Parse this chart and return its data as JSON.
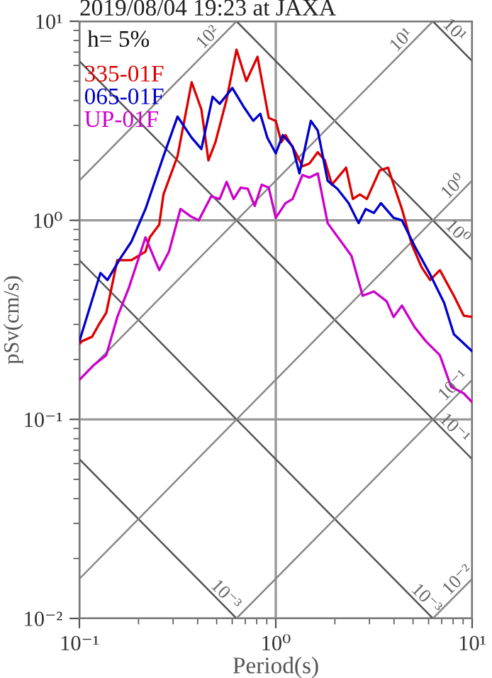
{
  "chart_data": {
    "type": "line",
    "title": "2019/08/04 19:23 at JAXA",
    "xlabel": "Period(s)",
    "ylabel": "pSv(cm/s)",
    "log": "xy",
    "xlim": [
      0.1,
      10
    ],
    "ylim": [
      0.01,
      10
    ],
    "xticks": [
      {
        "value": 0.1,
        "label": "10⁻¹"
      },
      {
        "value": 1,
        "label": "10⁰"
      },
      {
        "value": 10,
        "label": "10¹"
      }
    ],
    "yticks": [
      {
        "value": 0.01,
        "label": "10⁻²"
      },
      {
        "value": 0.1,
        "label": "10⁻¹"
      },
      {
        "value": 1,
        "label": "10⁰"
      },
      {
        "value": 10,
        "label": "10¹"
      }
    ],
    "grid": true,
    "legend": "top left",
    "series": [
      {
        "name": "335-01F",
        "color": "#dd0000",
        "x": [
          0.1,
          0.103,
          0.116,
          0.126,
          0.137,
          0.156,
          0.184,
          0.217,
          0.228,
          0.255,
          0.268,
          0.316,
          0.373,
          0.418,
          0.454,
          0.493,
          0.562,
          0.631,
          0.708,
          0.807,
          0.921,
          1.0,
          1.068,
          1.122,
          1.259,
          1.367,
          1.484,
          1.637,
          1.778,
          1.931,
          2.28,
          2.47,
          2.68,
          2.91,
          3.38,
          3.73,
          4.05,
          4.39,
          4.93,
          5.53,
          6.11,
          6.85,
          8.07,
          9.06,
          10
        ],
        "values": [
          0.239,
          0.247,
          0.26,
          0.301,
          0.343,
          0.631,
          0.631,
          0.696,
          0.821,
          0.952,
          1.35,
          2.1,
          4.94,
          3.61,
          2.0,
          2.47,
          4.05,
          7.2,
          5.01,
          6.63,
          3.27,
          3.16,
          2.47,
          2.68,
          2.2,
          1.87,
          1.93,
          2.2,
          2.0,
          1.51,
          1.84,
          1.28,
          1.35,
          1.28,
          1.78,
          1.84,
          1.44,
          1.14,
          0.756,
          0.581,
          0.501,
          0.562,
          0.418,
          0.332,
          0.327
        ]
      },
      {
        "name": "065-01F",
        "color": "#0000cc",
        "x": [
          0.1,
          0.128,
          0.139,
          0.161,
          0.184,
          0.217,
          0.268,
          0.316,
          0.373,
          0.418,
          0.477,
          0.518,
          0.601,
          0.685,
          0.768,
          0.834,
          0.906,
          1.0,
          1.085,
          1.218,
          1.32,
          1.509,
          1.637,
          1.837,
          2.06,
          2.35,
          2.64,
          2.87,
          3.16,
          3.43,
          3.98,
          4.39,
          5.09,
          6.11,
          7.2,
          8.07,
          10
        ],
        "values": [
          0.247,
          0.544,
          0.501,
          0.641,
          0.781,
          1.14,
          2.1,
          3.32,
          2.6,
          2.28,
          4.18,
          3.85,
          4.62,
          3.73,
          3.16,
          3.43,
          2.6,
          2.17,
          2.68,
          2.35,
          1.72,
          3.16,
          2.82,
          1.58,
          1.44,
          1.22,
          0.968,
          1.14,
          1.09,
          1.22,
          1.03,
          1.0,
          0.744,
          0.535,
          0.385,
          0.268,
          0.22
        ]
      },
      {
        "name": "UP-01F",
        "color": "#cc00cc",
        "x": [
          0.1,
          0.118,
          0.137,
          0.156,
          0.178,
          0.217,
          0.255,
          0.286,
          0.327,
          0.367,
          0.405,
          0.469,
          0.518,
          0.562,
          0.61,
          0.663,
          0.72,
          0.781,
          0.848,
          0.921,
          1.0,
          1.122,
          1.218,
          1.367,
          1.484,
          1.637,
          1.837,
          2.43,
          2.77,
          3.16,
          3.67,
          3.98,
          4.39,
          5.09,
          5.81,
          6.85,
          7.81,
          9.06,
          10
        ],
        "values": [
          0.158,
          0.187,
          0.21,
          0.327,
          0.454,
          0.821,
          0.562,
          0.696,
          1.14,
          1.05,
          1.0,
          1.32,
          1.28,
          1.56,
          1.28,
          1.46,
          1.44,
          1.18,
          1.51,
          1.46,
          1.03,
          1.22,
          1.28,
          1.69,
          1.64,
          1.72,
          0.968,
          0.663,
          0.418,
          0.439,
          0.392,
          0.327,
          0.373,
          0.291,
          0.247,
          0.21,
          0.146,
          0.135,
          0.122
        ]
      },
      {
        "color": "#555555",
        "x": [
          6.31,
          10
        ],
        "values": [
          10,
          6.31
        ]
      },
      {
        "color": "#555555",
        "x": [
          0.631,
          10
        ],
        "values": [
          10,
          0.631
        ]
      },
      {
        "color": "#555555",
        "x": [
          0.1,
          10
        ],
        "values": [
          6.31,
          0.0631
        ]
      },
      {
        "color": "#555555",
        "x": [
          0.1,
          6.31
        ],
        "values": [
          0.631,
          0.01
        ]
      },
      {
        "color": "#555555",
        "x": [
          0.1,
          0.631
        ],
        "values": [
          0.0631,
          0.01
        ]
      },
      {
        "color": "#888888",
        "x": [
          0.1,
          0.631
        ],
        "values": [
          1.585,
          10
        ]
      },
      {
        "color": "#888888",
        "x": [
          0.1,
          6.31
        ],
        "values": [
          0.158,
          10
        ]
      },
      {
        "color": "#888888",
        "x": [
          0.1,
          10
        ],
        "values": [
          0.0158,
          1.585
        ]
      },
      {
        "color": "#888888",
        "x": [
          0.631,
          10
        ],
        "values": [
          0.01,
          0.158
        ]
      },
      {
        "color": "#888888",
        "x": [
          6.31,
          10
        ],
        "values": [
          0.01,
          0.0158
        ]
      }
    ],
    "annotations": [
      "h= 5%",
      {
        "text": "10²",
        "x": 0.454,
        "y": 7.2
      },
      {
        "text": "10¹",
        "x": 4.39,
        "y": 6.97
      },
      {
        "text": "10¹",
        "x": 8.07,
        "y": 7.82
      },
      {
        "text": "10⁰",
        "x": 8.07,
        "y": 1.28
      },
      {
        "text": "10⁰",
        "x": 8.35,
        "y": 0.757
      },
      {
        "text": "10⁻¹",
        "x": 8.07,
        "y": 0.128
      },
      {
        "text": "10⁻¹",
        "x": 8.07,
        "y": 0.0782
      },
      {
        "text": "10⁻³",
        "x": 0.553,
        "y": 0.0114
      },
      {
        "text": "10⁻³",
        "x": 5.81,
        "y": 0.0109
      },
      {
        "text": "10⁻²",
        "x": 8.49,
        "y": 0.0135
      }
    ]
  }
}
